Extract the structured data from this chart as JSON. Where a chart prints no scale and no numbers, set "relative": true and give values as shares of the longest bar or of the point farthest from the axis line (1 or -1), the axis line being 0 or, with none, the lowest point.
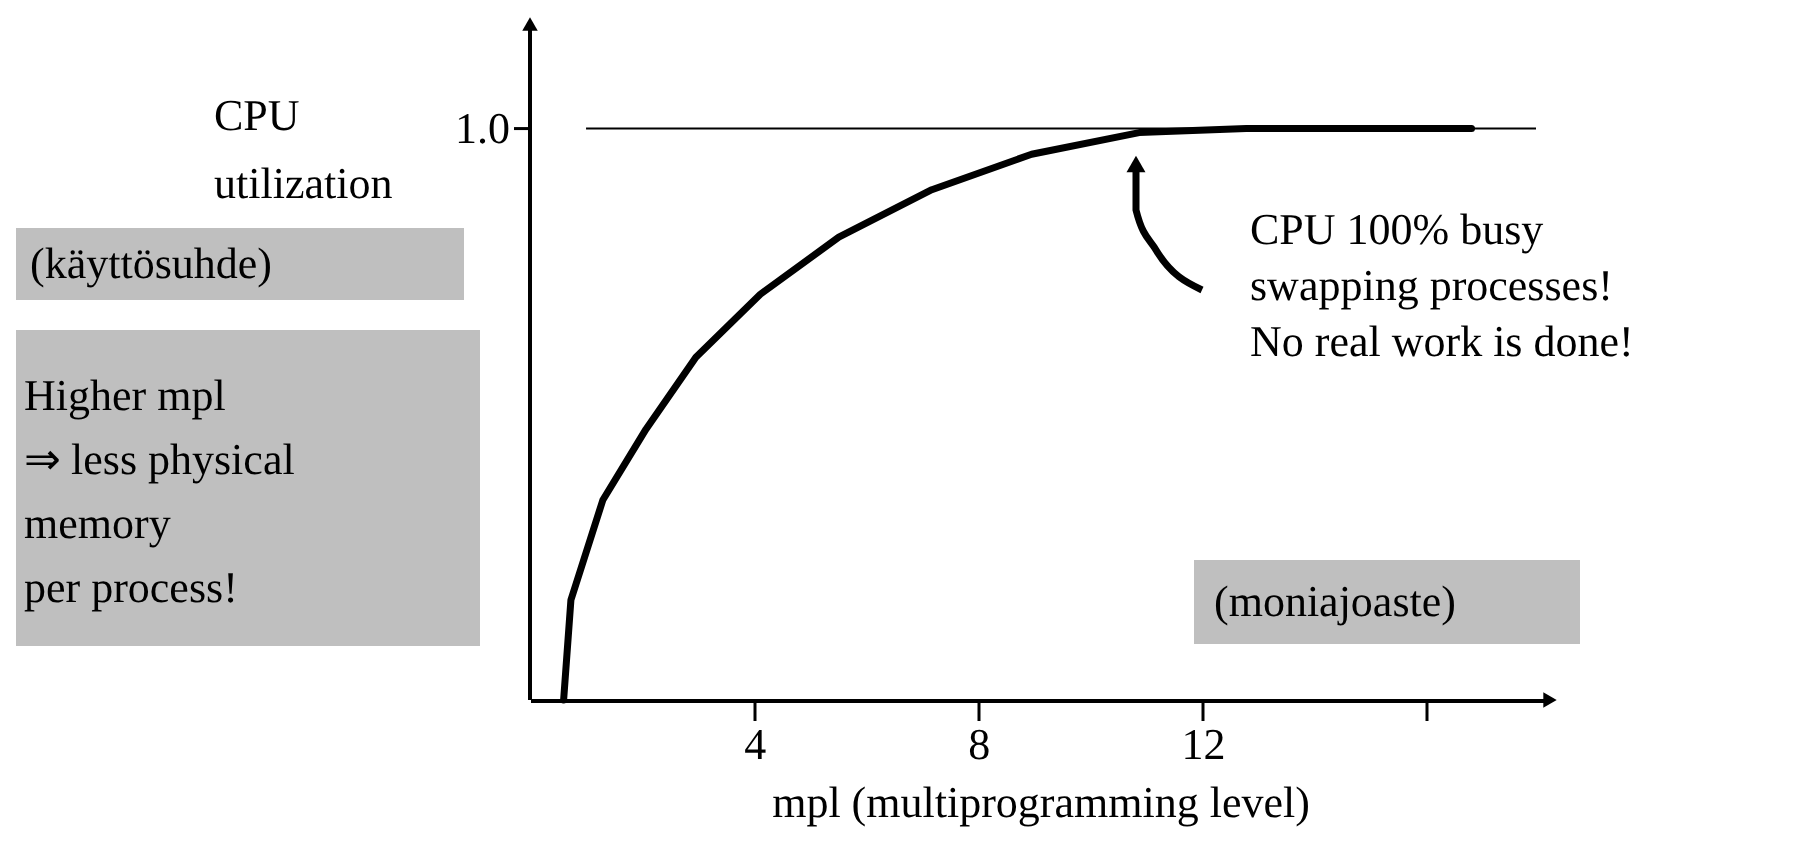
{
  "chart_data": {
    "type": "line",
    "relative": true,
    "xlabel": "mpl (multiprogramming level)",
    "ylabel": "CPU\nutilization",
    "xlim": [
      0,
      18.2
    ],
    "xticks": [
      4,
      8,
      12,
      {
        "value": 16,
        "label": null
      }
    ],
    "series": [
      {
        "color": "#000000",
        "x": [
          0.6,
          0.73,
          1.3,
          2.07,
          2.96,
          4.11,
          5.51,
          7.17,
          8.95,
          10.87,
          12.78,
          16.8
        ],
        "values": [
          0,
          0.175,
          0.35,
          0.474,
          0.6,
          0.71,
          0.81,
          0.893,
          0.955,
          0.993,
          1,
          1
        ]
      }
    ],
    "ref_lines": [
      {
        "axis": "y",
        "value": 1,
        "label": "1.0"
      }
    ],
    "annotations": [
      "(käyttösuhde)",
      "Higher mpl\n⇒ less physical\nmemory\nper process!",
      "CPU 100% busy\nswapping processes!\nNo real work is done!",
      "(moniajoaste)"
    ],
    "grid": false,
    "marker": "none",
    "line_style": "solid"
  }
}
